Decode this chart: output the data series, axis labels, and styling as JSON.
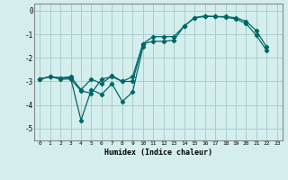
{
  "background_color": "#d4eeee",
  "grid_color": "#aacccc",
  "line_color": "#006666",
  "line1_x": [
    0,
    1,
    2,
    3,
    4,
    5,
    6,
    7,
    8,
    9,
    10,
    11,
    12,
    13,
    14,
    15,
    16,
    17,
    18,
    19,
    20,
    21,
    22,
    23
  ],
  "line1_y": [
    -2.9,
    -2.8,
    -2.9,
    -2.9,
    -3.4,
    -3.5,
    -2.9,
    -2.8,
    -3.0,
    -3.0,
    -1.4,
    -1.1,
    -1.1,
    -1.1,
    -0.65,
    -0.3,
    -0.25,
    -0.25,
    -0.25,
    -0.3,
    -0.45,
    -0.85,
    -1.55,
    null
  ],
  "line2_x": [
    0,
    1,
    2,
    3,
    4,
    5,
    6,
    7,
    8,
    9,
    10
  ],
  "line2_y": [
    -2.9,
    -2.8,
    -2.85,
    -2.85,
    -4.65,
    -3.35,
    -3.55,
    -3.1,
    -3.85,
    -3.45,
    -1.55
  ],
  "line3_x": [
    0,
    1,
    2,
    3,
    4,
    5,
    6,
    7,
    8,
    9,
    10,
    11,
    12,
    13,
    14,
    15,
    16,
    17,
    18,
    19,
    20,
    21,
    22,
    23
  ],
  "line3_y": [
    -2.9,
    -2.8,
    -2.85,
    -2.8,
    -3.35,
    -2.9,
    -3.1,
    -2.75,
    -3.0,
    -2.8,
    -1.4,
    -1.3,
    -1.3,
    -1.25,
    -0.65,
    -0.3,
    -0.22,
    -0.25,
    -0.28,
    -0.35,
    -0.55,
    -1.05,
    -1.7,
    null
  ],
  "xlabel": "Humidex (Indice chaleur)",
  "xlim": [
    -0.5,
    23.5
  ],
  "ylim": [
    -5.5,
    0.3
  ],
  "yticks": [
    0,
    -1,
    -2,
    -3,
    -4,
    -5
  ],
  "xticks": [
    0,
    1,
    2,
    3,
    4,
    5,
    6,
    7,
    8,
    9,
    10,
    11,
    12,
    13,
    14,
    15,
    16,
    17,
    18,
    19,
    20,
    21,
    22,
    23
  ],
  "spine_color": "#888888"
}
